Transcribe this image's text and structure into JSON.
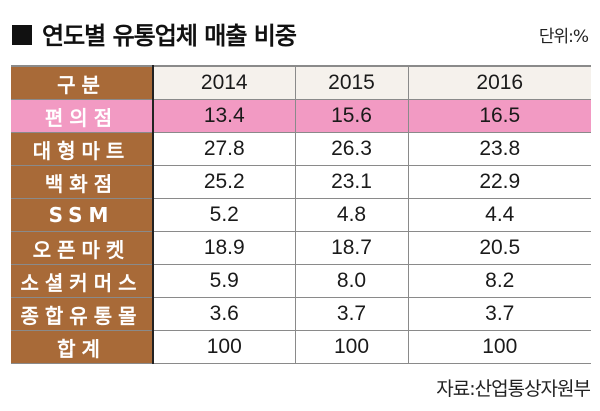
{
  "title": "연도별 유통업체 매출 비중",
  "unit": "단위:%",
  "source": "자료:산업통상자원부",
  "colors": {
    "label_bg": "#a86a38",
    "highlight": "#f29ac3",
    "header_bg": "#f5f1ec"
  },
  "table": {
    "header": {
      "label": "구분",
      "years": [
        "2014",
        "2015",
        "2016"
      ]
    },
    "rows": [
      {
        "label": "편의점",
        "values": [
          "13.4",
          "15.6",
          "16.5"
        ],
        "highlight": true
      },
      {
        "label": "대형마트",
        "values": [
          "27.8",
          "26.3",
          "23.8"
        ]
      },
      {
        "label": "백화점",
        "values": [
          "25.2",
          "23.1",
          "22.9"
        ]
      },
      {
        "label": "SSM",
        "values": [
          "5.2",
          "4.8",
          "4.4"
        ]
      },
      {
        "label": "오픈마켓",
        "values": [
          "18.9",
          "18.7",
          "20.5"
        ]
      },
      {
        "label": "소셜커머스",
        "values": [
          "5.9",
          "8.0",
          "8.2"
        ]
      },
      {
        "label": "종합유통몰",
        "values": [
          "3.6",
          "3.7",
          "3.7"
        ]
      },
      {
        "label": "합계",
        "values": [
          "100",
          "100",
          "100"
        ]
      }
    ]
  },
  "chart_data": {
    "type": "table",
    "title": "연도별 유통업체 매출 비중",
    "unit": "%",
    "categories": [
      "2014",
      "2015",
      "2016"
    ],
    "series": [
      {
        "name": "편의점",
        "values": [
          13.4,
          15.6,
          16.5
        ]
      },
      {
        "name": "대형마트",
        "values": [
          27.8,
          26.3,
          23.8
        ]
      },
      {
        "name": "백화점",
        "values": [
          25.2,
          23.1,
          22.9
        ]
      },
      {
        "name": "SSM",
        "values": [
          5.2,
          4.8,
          4.4
        ]
      },
      {
        "name": "오픈마켓",
        "values": [
          18.9,
          18.7,
          20.5
        ]
      },
      {
        "name": "소셜커머스",
        "values": [
          5.9,
          8.0,
          8.2
        ]
      },
      {
        "name": "종합유통몰",
        "values": [
          3.6,
          3.7,
          3.7
        ]
      },
      {
        "name": "합계",
        "values": [
          100,
          100,
          100
        ]
      }
    ],
    "source": "산업통상자원부"
  }
}
